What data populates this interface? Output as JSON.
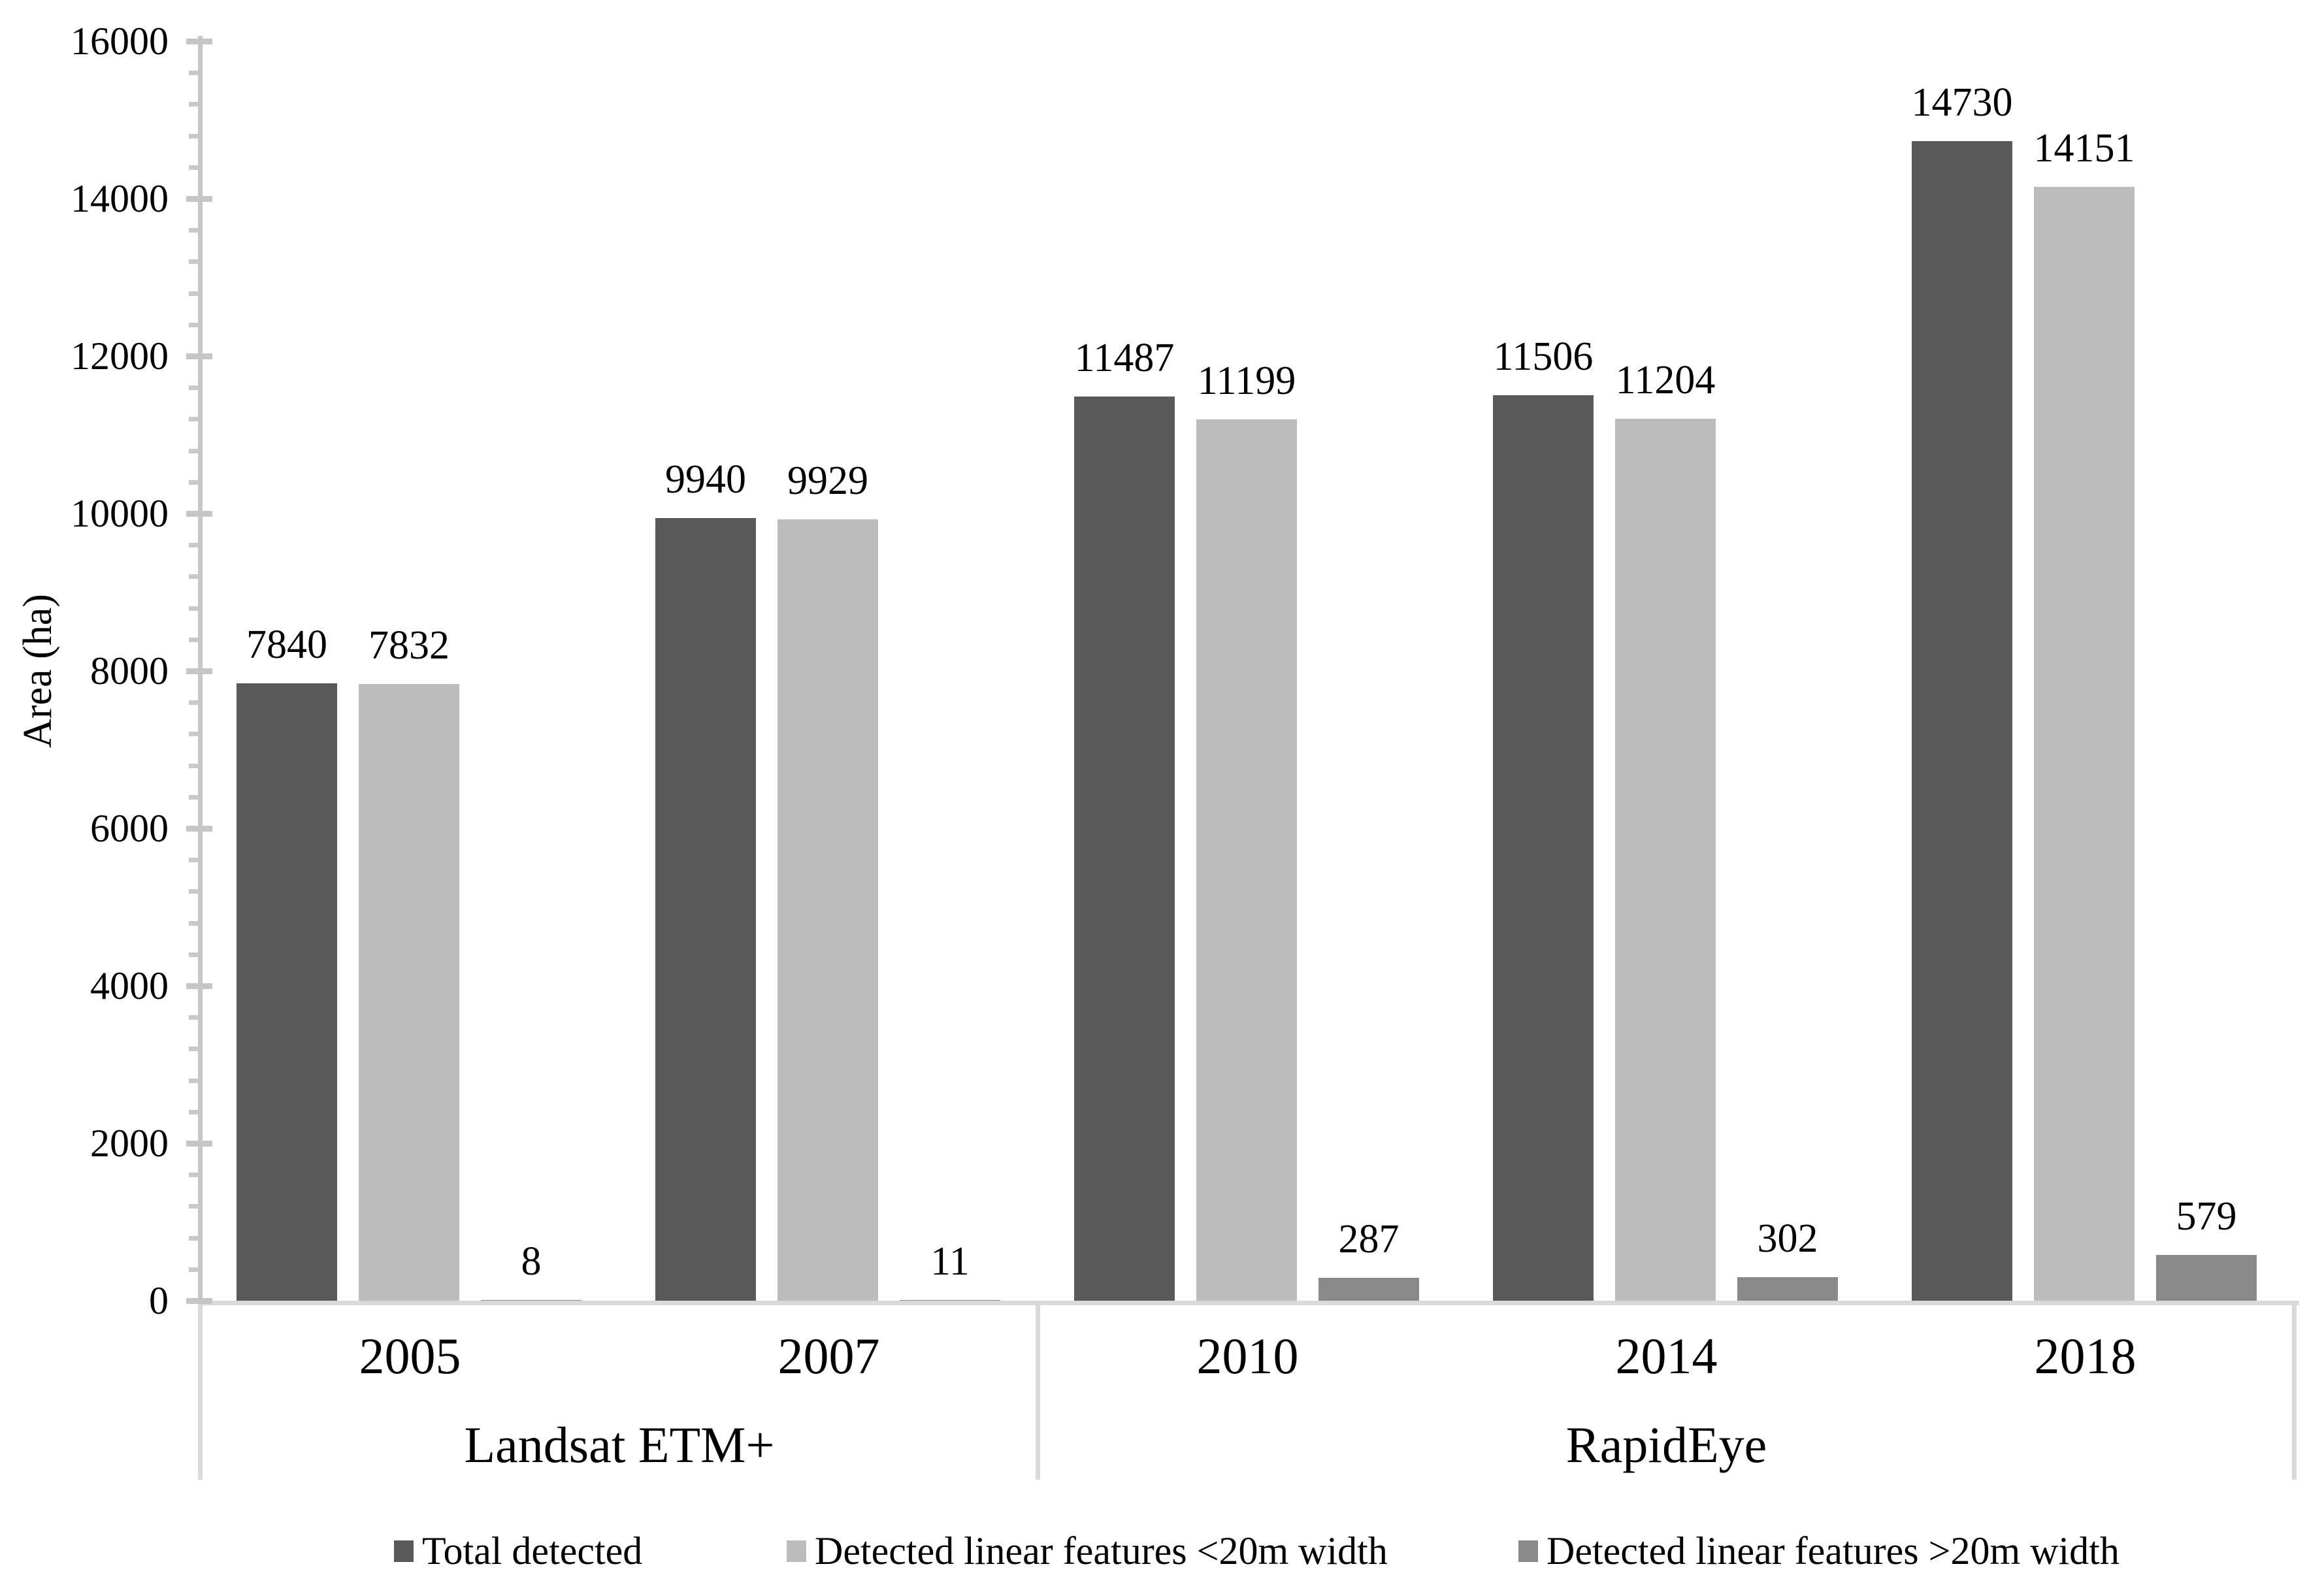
{
  "chart_data": {
    "type": "bar",
    "title": "",
    "ylabel": "Area (ha)",
    "xlabel": "",
    "ylim": [
      0,
      16000
    ],
    "y_major_tick_labels": [
      "0",
      "2000",
      "4000",
      "6000",
      "8000",
      "10000",
      "12000",
      "14000",
      "16000"
    ],
    "y_major_unit": 2000,
    "y_minor_unit": 400,
    "grid": false,
    "legend_position": "bottom",
    "data_labels": true,
    "categories": [
      "2005",
      "2007",
      "2010",
      "2014",
      "2018"
    ],
    "groups": [
      {
        "label": "Landsat ETM+",
        "categories": [
          "2005",
          "2007"
        ]
      },
      {
        "label": "RapidEye",
        "categories": [
          "2010",
          "2014",
          "2018"
        ]
      }
    ],
    "series": [
      {
        "name": "Total detected",
        "color": "#595959",
        "values": [
          7840,
          9940,
          11487,
          11506,
          14730
        ]
      },
      {
        "name": "Detected linear features <20m width",
        "color": "#bcbcbc",
        "values": [
          7832,
          9929,
          11199,
          11204,
          14151
        ]
      },
      {
        "name": "Detected linear features >20m width",
        "color": "#898989",
        "values": [
          8,
          11,
          287,
          302,
          579
        ]
      }
    ],
    "data_label_values": [
      [
        "7840",
        "9940",
        "11487",
        "11506",
        "14730"
      ],
      [
        "7832",
        "9929",
        "11199",
        "11204",
        "14151"
      ],
      [
        "8",
        "11",
        "287",
        "302",
        "579"
      ]
    ]
  },
  "colors": {
    "y_axis": "#c6c6c6",
    "x_axis": "#d9d9d9",
    "dividers": "#d9d9d9",
    "text": "#000000",
    "background": "#ffffff"
  }
}
